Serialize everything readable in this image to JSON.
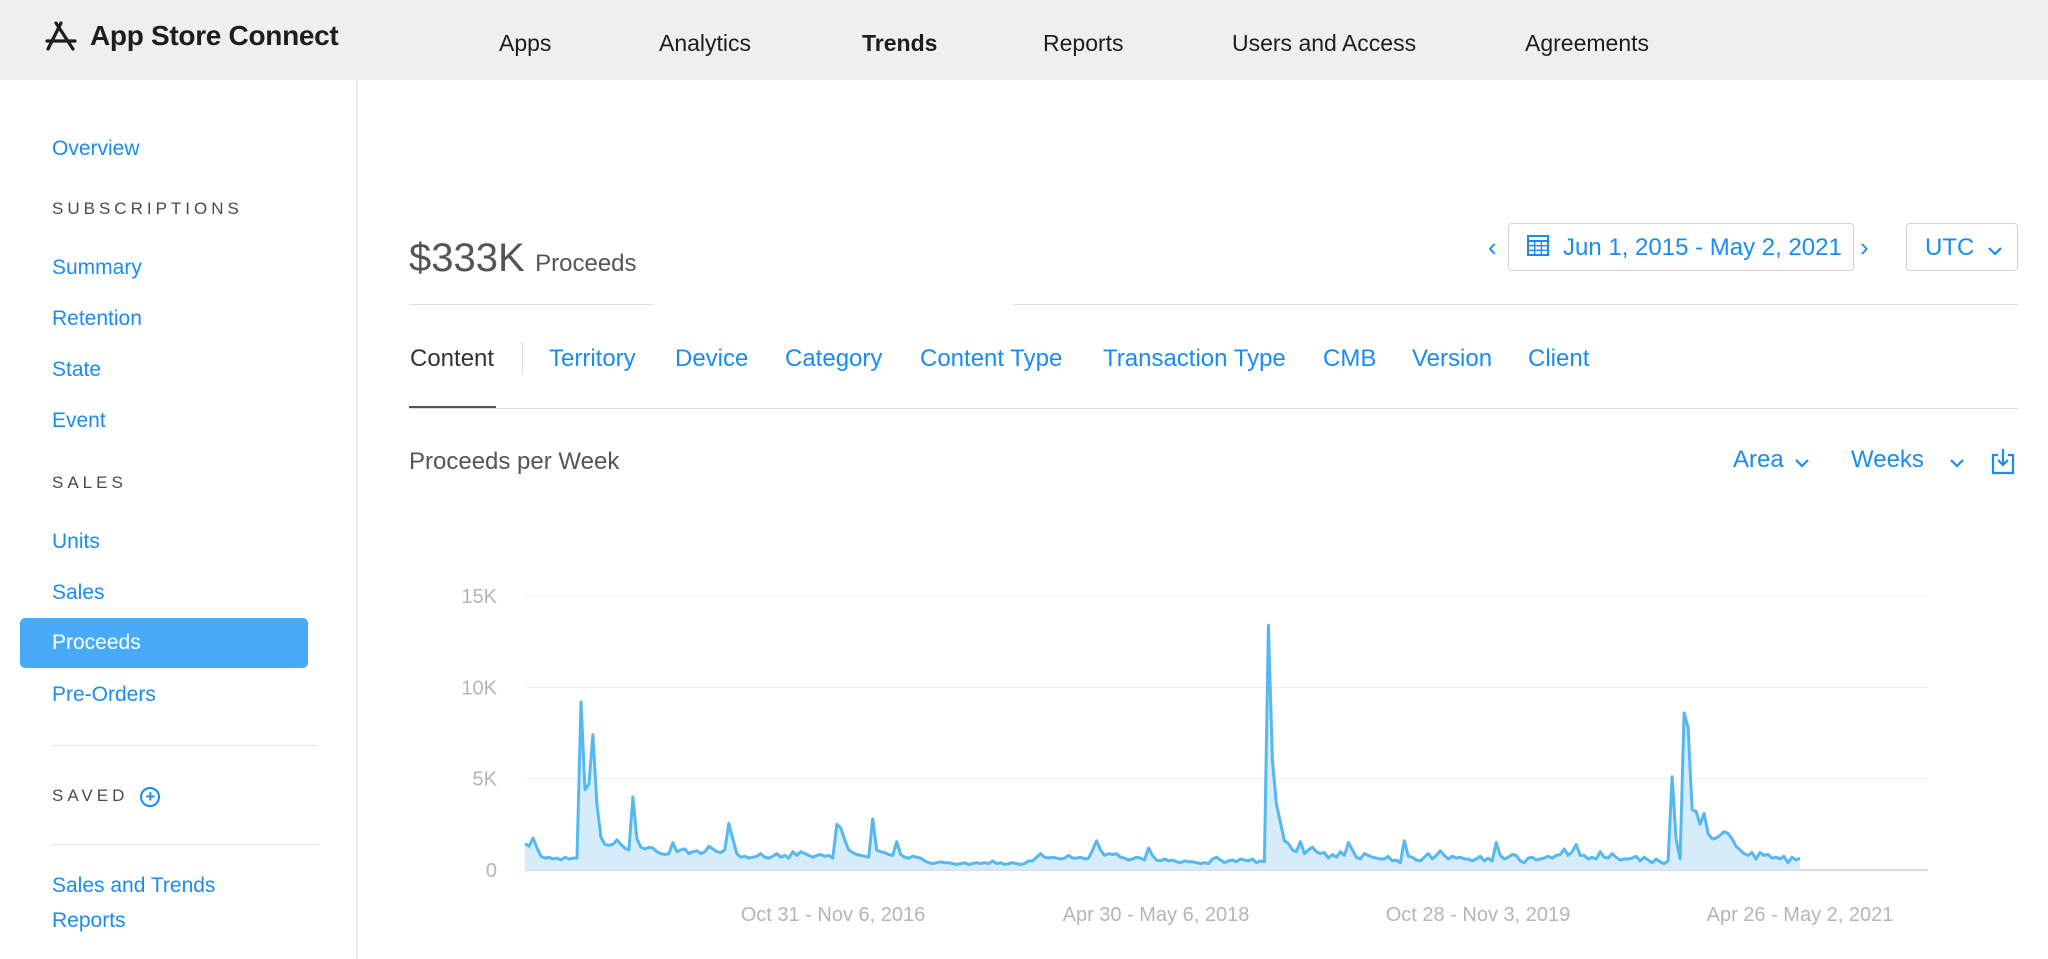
{
  "app": {
    "title": "App Store Connect"
  },
  "nav": [
    "Apps",
    "Analytics",
    "Trends",
    "Reports",
    "Users and Access",
    "Agreements"
  ],
  "sidebar": {
    "overview": "Overview",
    "subscriptions_heading": "SUBSCRIPTIONS",
    "subscriptions": [
      "Summary",
      "Retention",
      "State",
      "Event"
    ],
    "sales_heading": "SALES",
    "sales": [
      "Units",
      "Sales",
      "Proceeds",
      "Pre-Orders"
    ],
    "saved_heading": "SAVED",
    "saved_add": "+",
    "saved_items": [
      "Sales and Trends",
      "Reports"
    ]
  },
  "summary": {
    "value": "$333K",
    "label": "Proceeds"
  },
  "date_range": {
    "label": "Jun 1, 2015 - May 2, 2021",
    "prev": "‹",
    "next": "›"
  },
  "timezone": {
    "label": "UTC"
  },
  "tabs": [
    "Content",
    "Territory",
    "Device",
    "Category",
    "Content Type",
    "Transaction Type",
    "CMB",
    "Version",
    "Client"
  ],
  "chart_header": {
    "title": "Proceeds per Week",
    "type_select": "Area",
    "interval_select": "Weeks"
  },
  "icons": {
    "brand": "app-store-icon",
    "calendar": "calendar-icon",
    "download": "download-icon",
    "chevron": "chevron-down-icon"
  },
  "colors": {
    "accent": "#1a8cf0",
    "active_item": "#47abf7",
    "series_line": "#55b8f0",
    "series_fill": "#d6ecfa"
  },
  "chart_data": {
    "type": "area",
    "title": "Proceeds per Week",
    "x_labels": [
      "Oct 31 - Nov 6, 2016",
      "Apr 30 - May 6, 2018",
      "Oct 28 - Nov 3, 2019",
      "Apr 26 - May 2, 2021"
    ],
    "y_ticks": [
      "0",
      "5K",
      "10K",
      "15K"
    ],
    "ylim": [
      0,
      15000
    ],
    "grid": true,
    "series": [
      {
        "values": [
          1450,
          1300,
          1750,
          1200,
          750,
          650,
          700,
          600,
          650,
          550,
          700,
          600,
          650,
          650,
          9200,
          4400,
          4700,
          7400,
          3600,
          1800,
          1400,
          1350,
          1400,
          1650,
          1400,
          1200,
          1100,
          4000,
          1700,
          1250,
          1150,
          1250,
          1200,
          1000,
          900,
          850,
          900,
          1500,
          1000,
          1100,
          1150,
          900,
          1000,
          1050,
          900,
          1000,
          1300,
          1150,
          1000,
          950,
          1100,
          2550,
          1700,
          900,
          700,
          750,
          650,
          700,
          750,
          900,
          700,
          650,
          750,
          900,
          700,
          800,
          650,
          1000,
          800,
          1000,
          900,
          800,
          700,
          800,
          850,
          750,
          800,
          650,
          2500,
          2300,
          1650,
          1100,
          950,
          850,
          800,
          750,
          700,
          2800,
          1100,
          1000,
          950,
          850,
          800,
          1550,
          850,
          700,
          650,
          750,
          700,
          650,
          500,
          400,
          350,
          400,
          450,
          400,
          400,
          350,
          300,
          350,
          400,
          300,
          350,
          400,
          350,
          400,
          350,
          500,
          350,
          400,
          300,
          350,
          400,
          350,
          300,
          350,
          500,
          500,
          700,
          900,
          700,
          650,
          700,
          650,
          600,
          650,
          800,
          650,
          650,
          700,
          600,
          650,
          1100,
          1600,
          1100,
          800,
          900,
          850,
          900,
          700,
          650,
          550,
          600,
          700,
          650,
          550,
          1200,
          800,
          550,
          500,
          600,
          500,
          550,
          450,
          400,
          500,
          450,
          450,
          400,
          350,
          400,
          350,
          600,
          700,
          550,
          400,
          500,
          550,
          450,
          600,
          550,
          500,
          600,
          400,
          500,
          450,
          13400,
          6000,
          3600,
          2600,
          1600,
          1450,
          1100,
          1000,
          1550,
          900,
          1100,
          1250,
          1000,
          900,
          950,
          650,
          850,
          700,
          1000,
          800,
          1500,
          1100,
          700,
          600,
          900,
          800,
          700,
          650,
          600,
          600,
          750,
          500,
          550,
          400,
          1600,
          750,
          700,
          550,
          500,
          700,
          900,
          600,
          800,
          1050,
          800,
          600,
          750,
          650,
          700,
          600,
          600,
          500,
          600,
          750,
          500,
          650,
          500,
          1500,
          800,
          600,
          700,
          850,
          800,
          500,
          400,
          650,
          700,
          550,
          600,
          650,
          750,
          650,
          800,
          850,
          1150,
          800,
          1000,
          1400,
          800,
          800,
          600,
          700,
          600,
          1000,
          700,
          650,
          900,
          700,
          550,
          600,
          600,
          650,
          750,
          500,
          700,
          550,
          400,
          600,
          450,
          350,
          500,
          5100,
          1700,
          600,
          8600,
          7800,
          3300,
          3200,
          2500,
          3100,
          2000,
          1700,
          1750,
          1900,
          2100,
          2000,
          1700,
          1300,
          1100,
          900,
          800,
          950,
          600,
          950,
          800,
          850,
          650,
          700,
          600,
          750,
          400,
          700,
          550,
          650
        ]
      }
    ]
  }
}
